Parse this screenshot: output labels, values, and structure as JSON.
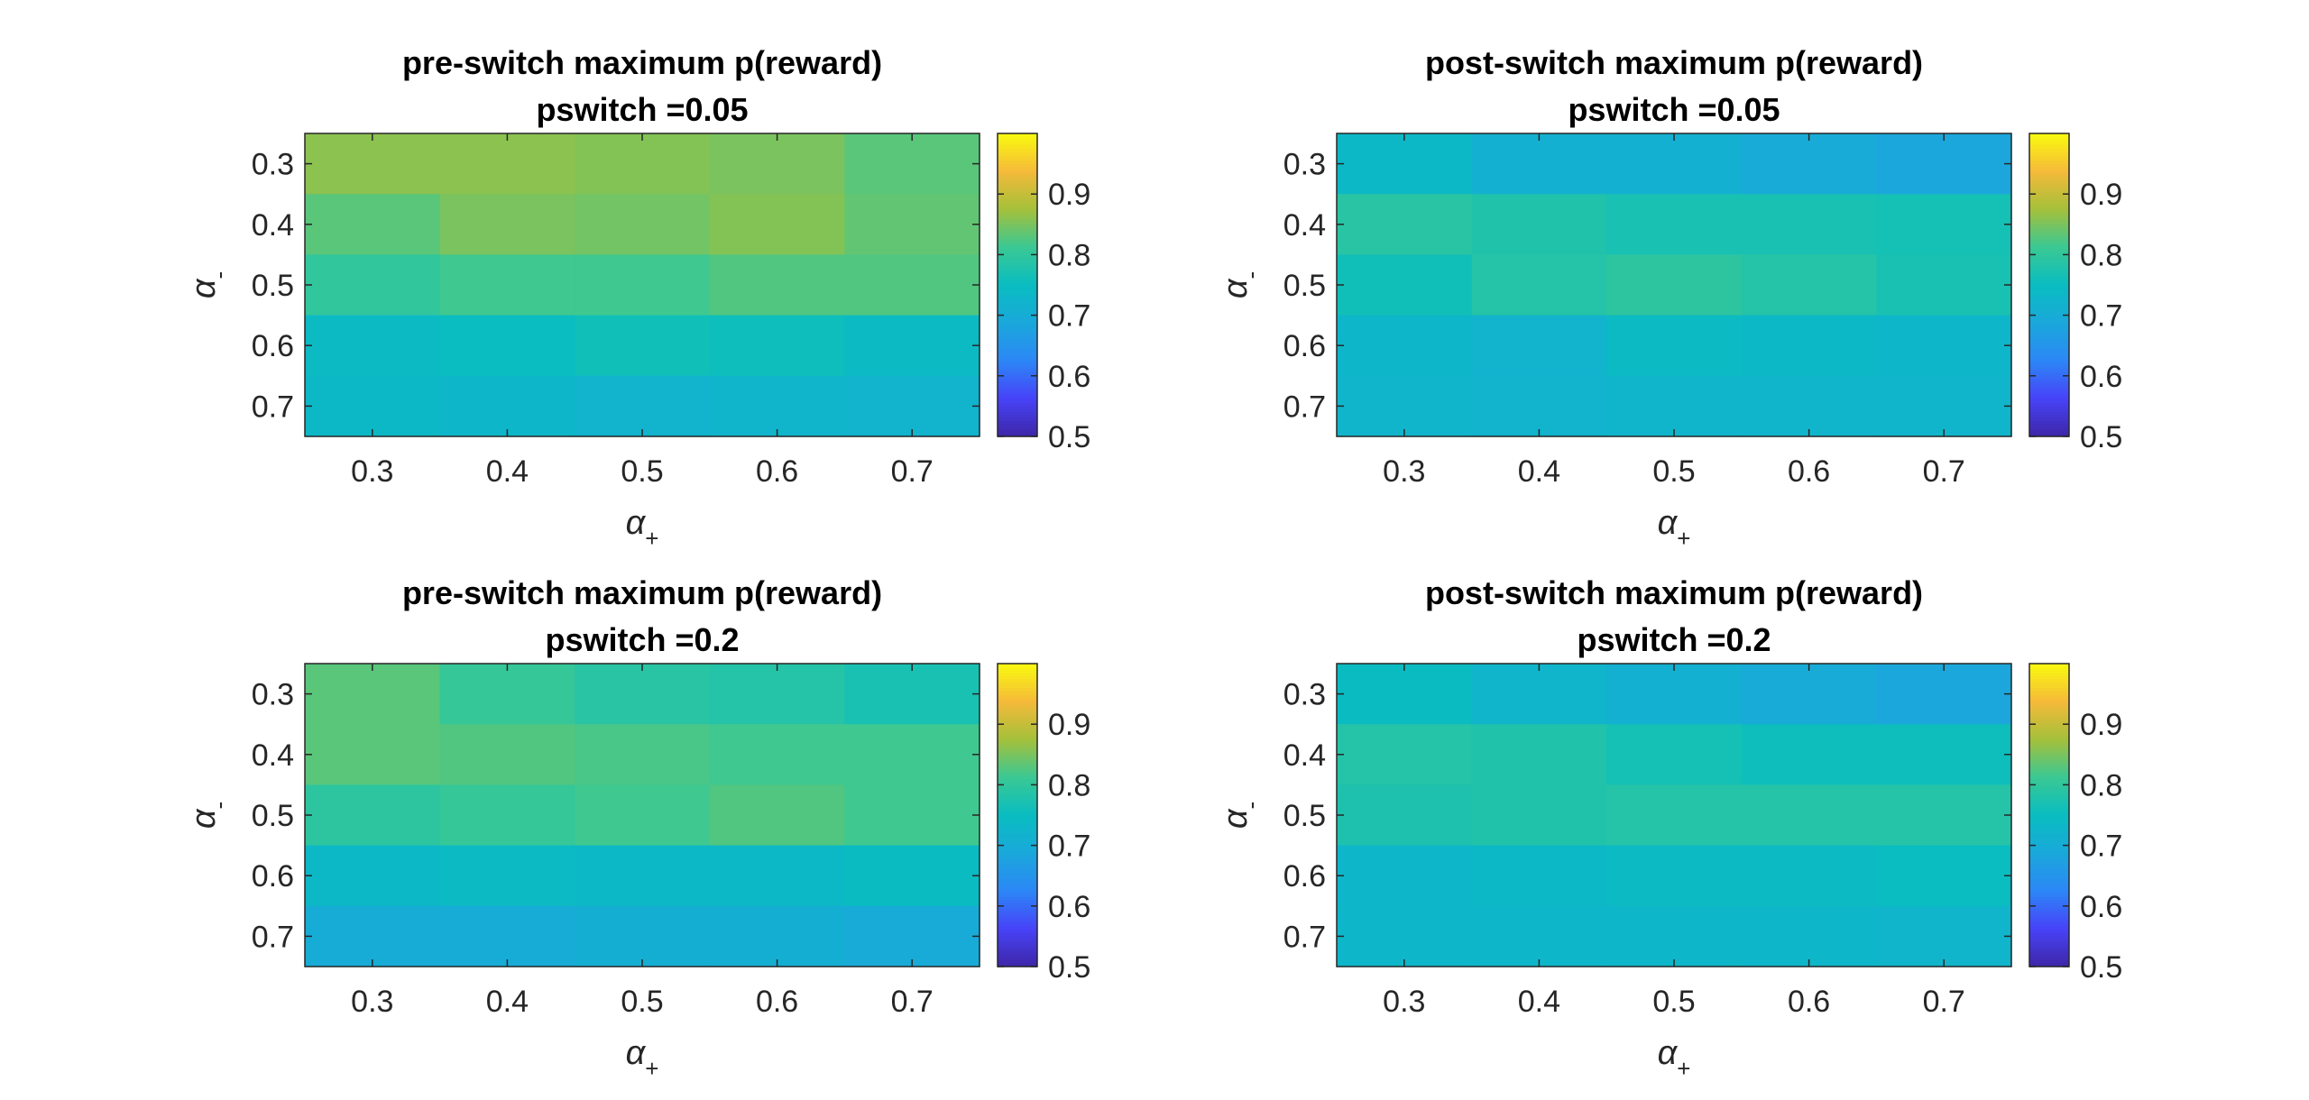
{
  "figure": {
    "background": "#ffffff"
  },
  "colormap": {
    "name": "parula",
    "stops": [
      "#3E26A8",
      "#4743F8",
      "#2C87F6",
      "#1AA8DB",
      "#09BDC0",
      "#3BC893",
      "#A5C03A",
      "#F5BA3A",
      "#F9FB0E"
    ]
  },
  "chart_data": [
    {
      "type": "heatmap",
      "title": [
        "pre-switch maximum p(reward)",
        "pswitch =0.05"
      ],
      "xlabel": {
        "symbol": "α",
        "subscript": "+"
      },
      "ylabel": {
        "symbol": "α",
        "subscript": "-"
      },
      "x": [
        0.3,
        0.4,
        0.5,
        0.6,
        0.7
      ],
      "y": [
        0.3,
        0.4,
        0.5,
        0.6,
        0.7
      ],
      "x_tick_labels": [
        "0.3",
        "0.4",
        "0.5",
        "0.6",
        "0.7"
      ],
      "y_tick_labels": [
        "0.3",
        "0.4",
        "0.5",
        "0.6",
        "0.7"
      ],
      "values": [
        [
          0.86,
          0.86,
          0.855,
          0.85,
          0.83
        ],
        [
          0.83,
          0.85,
          0.845,
          0.855,
          0.835
        ],
        [
          0.8,
          0.815,
          0.815,
          0.825,
          0.825
        ],
        [
          0.74,
          0.75,
          0.76,
          0.755,
          0.74
        ],
        [
          0.735,
          0.73,
          0.72,
          0.725,
          0.72
        ]
      ],
      "colorbar": {
        "limits": [
          0.5,
          1.0
        ],
        "ticks": [
          0.5,
          0.6,
          0.7,
          0.8,
          0.9
        ],
        "tick_labels": [
          "0.5",
          "0.6",
          "0.7",
          "0.8",
          "0.9"
        ]
      }
    },
    {
      "type": "heatmap",
      "title": [
        "post-switch maximum p(reward)",
        "pswitch =0.05"
      ],
      "xlabel": {
        "symbol": "α",
        "subscript": "+"
      },
      "ylabel": {
        "symbol": "α",
        "subscript": "-"
      },
      "x": [
        0.3,
        0.4,
        0.5,
        0.6,
        0.7
      ],
      "y": [
        0.3,
        0.4,
        0.5,
        0.6,
        0.7
      ],
      "x_tick_labels": [
        "0.3",
        "0.4",
        "0.5",
        "0.6",
        "0.7"
      ],
      "y_tick_labels": [
        "0.3",
        "0.4",
        "0.5",
        "0.6",
        "0.7"
      ],
      "values": [
        [
          0.735,
          0.71,
          0.71,
          0.695,
          0.685
        ],
        [
          0.79,
          0.78,
          0.77,
          0.77,
          0.765
        ],
        [
          0.76,
          0.785,
          0.795,
          0.785,
          0.77
        ],
        [
          0.73,
          0.72,
          0.74,
          0.735,
          0.73
        ],
        [
          0.725,
          0.72,
          0.725,
          0.725,
          0.725
        ]
      ],
      "colorbar": {
        "limits": [
          0.5,
          1.0
        ],
        "ticks": [
          0.5,
          0.6,
          0.7,
          0.8,
          0.9
        ],
        "tick_labels": [
          "0.5",
          "0.6",
          "0.7",
          "0.8",
          "0.9"
        ]
      }
    },
    {
      "type": "heatmap",
      "title": [
        "pre-switch maximum p(reward)",
        "pswitch =0.2"
      ],
      "xlabel": {
        "symbol": "α",
        "subscript": "+"
      },
      "ylabel": {
        "symbol": "α",
        "subscript": "-"
      },
      "x": [
        0.3,
        0.4,
        0.5,
        0.6,
        0.7
      ],
      "y": [
        0.3,
        0.4,
        0.5,
        0.6,
        0.7
      ],
      "x_tick_labels": [
        "0.3",
        "0.4",
        "0.5",
        "0.6",
        "0.7"
      ],
      "y_tick_labels": [
        "0.3",
        "0.4",
        "0.5",
        "0.6",
        "0.7"
      ],
      "values": [
        [
          0.83,
          0.805,
          0.79,
          0.785,
          0.77
        ],
        [
          0.83,
          0.825,
          0.82,
          0.815,
          0.815
        ],
        [
          0.795,
          0.805,
          0.815,
          0.825,
          0.815
        ],
        [
          0.735,
          0.74,
          0.735,
          0.735,
          0.745
        ],
        [
          0.7,
          0.7,
          0.705,
          0.705,
          0.695
        ]
      ],
      "colorbar": {
        "limits": [
          0.5,
          1.0
        ],
        "ticks": [
          0.5,
          0.6,
          0.7,
          0.8,
          0.9
        ],
        "tick_labels": [
          "0.5",
          "0.6",
          "0.7",
          "0.8",
          "0.9"
        ]
      }
    },
    {
      "type": "heatmap",
      "title": [
        "post-switch maximum p(reward)",
        "pswitch =0.2"
      ],
      "xlabel": {
        "symbol": "α",
        "subscript": "+"
      },
      "ylabel": {
        "symbol": "α",
        "subscript": "-"
      },
      "x": [
        0.3,
        0.4,
        0.5,
        0.6,
        0.7
      ],
      "y": [
        0.3,
        0.4,
        0.5,
        0.6,
        0.7
      ],
      "x_tick_labels": [
        "0.3",
        "0.4",
        "0.5",
        "0.6",
        "0.7"
      ],
      "y_tick_labels": [
        "0.3",
        "0.4",
        "0.5",
        "0.6",
        "0.7"
      ],
      "values": [
        [
          0.745,
          0.725,
          0.71,
          0.695,
          0.685
        ],
        [
          0.785,
          0.78,
          0.765,
          0.755,
          0.755
        ],
        [
          0.775,
          0.78,
          0.785,
          0.785,
          0.785
        ],
        [
          0.73,
          0.735,
          0.74,
          0.74,
          0.75
        ],
        [
          0.73,
          0.73,
          0.73,
          0.73,
          0.725
        ]
      ],
      "colorbar": {
        "limits": [
          0.5,
          1.0
        ],
        "ticks": [
          0.5,
          0.6,
          0.7,
          0.8,
          0.9
        ],
        "tick_labels": [
          "0.5",
          "0.6",
          "0.7",
          "0.8",
          "0.9"
        ]
      }
    }
  ]
}
